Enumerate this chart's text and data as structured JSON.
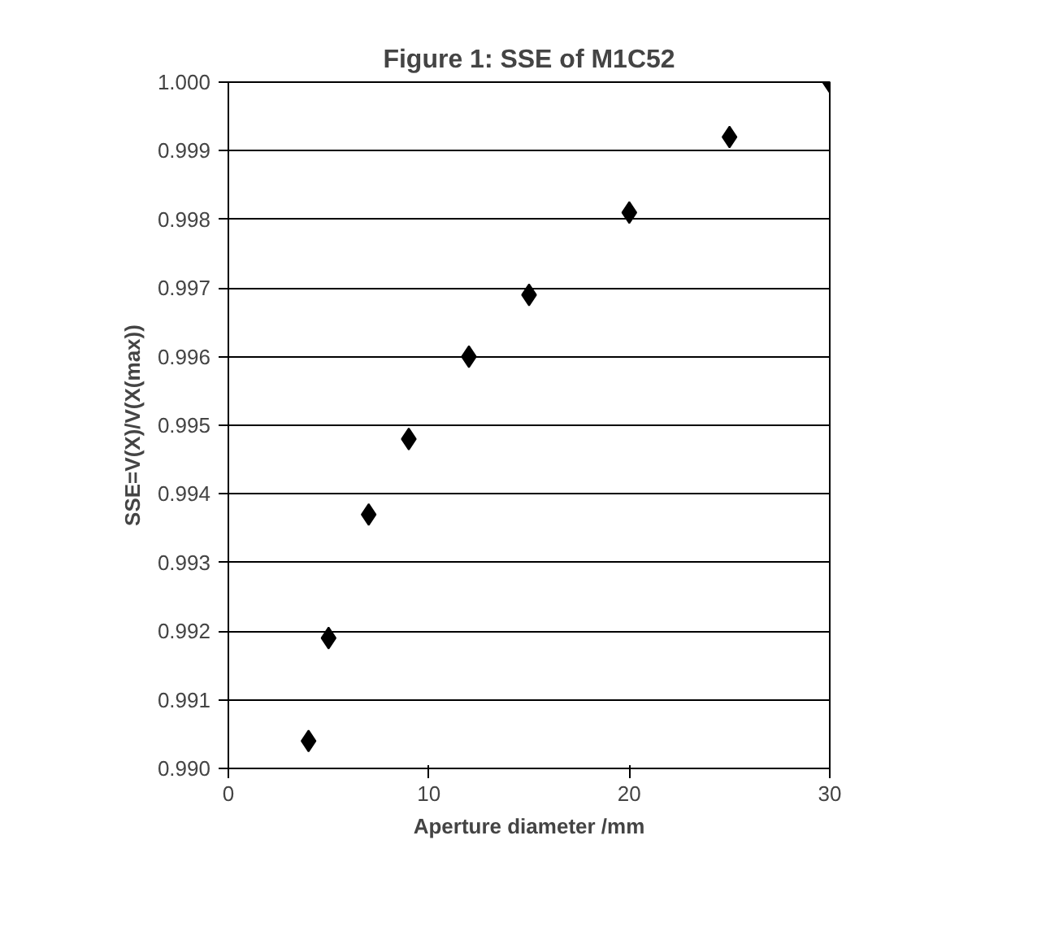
{
  "chart_data": {
    "type": "scatter",
    "title": "Figure 1: SSE of M1C52",
    "xlabel": "Aperture diameter /mm",
    "ylabel": "SSE=V(X)/V(X(max))",
    "x": [
      4,
      5,
      7,
      9,
      12,
      15,
      20,
      25,
      30
    ],
    "series": [
      {
        "color": "#000000",
        "values": [
          0.9904,
          0.9919,
          0.9937,
          0.9948,
          0.996,
          0.9969,
          0.9981,
          0.9992,
          1.0
        ]
      }
    ],
    "xlim": [
      0,
      30
    ],
    "xticks": [
      0,
      10,
      20,
      30
    ],
    "ylim": [
      0.99,
      1.0
    ],
    "yticks": [
      {
        "value": 0.99,
        "label": "0.990"
      },
      {
        "value": 0.991,
        "label": "0.991"
      },
      {
        "value": 0.992,
        "label": "0.992"
      },
      {
        "value": 0.993,
        "label": "0.993"
      },
      {
        "value": 0.994,
        "label": "0.994"
      },
      {
        "value": 0.995,
        "label": "0.995"
      },
      {
        "value": 0.996,
        "label": "0.996"
      },
      {
        "value": 0.997,
        "label": "0.997"
      },
      {
        "value": 0.998,
        "label": "0.998"
      },
      {
        "value": 0.999,
        "label": "0.999"
      },
      {
        "value": 1.0,
        "label": "1.000"
      }
    ],
    "grid": "y",
    "marker": "diamond"
  }
}
